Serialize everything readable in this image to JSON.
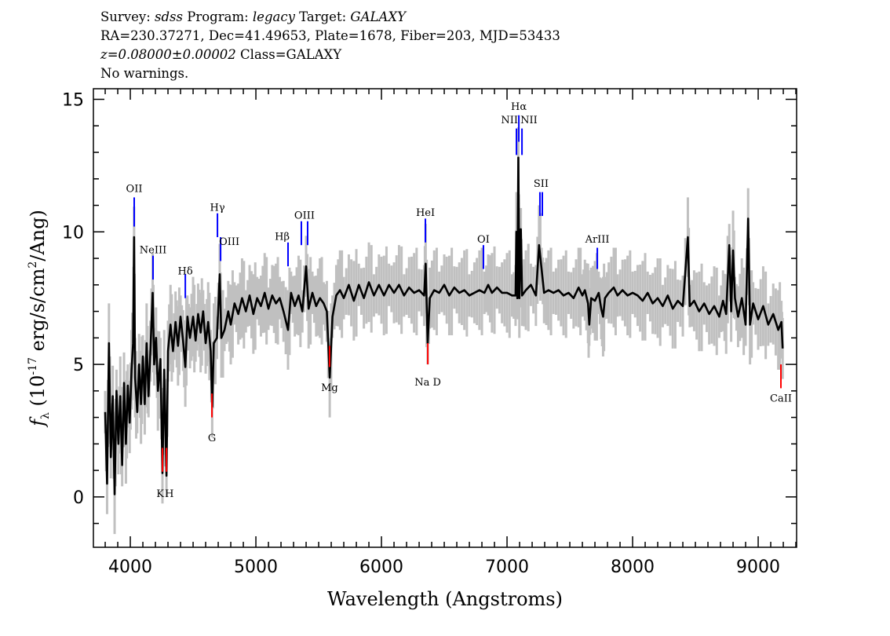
{
  "header": {
    "line1": {
      "survey_label": "Survey: ",
      "survey": "sdss",
      "program_label": " Program: ",
      "program": "legacy",
      "target_label": " Target: ",
      "target": "GALAXY"
    },
    "line2": "RA=230.37271, Dec=41.49653, Plate=1678, Fiber=203, MJD=53433",
    "line3": {
      "z": "z=0.08000±0.00002",
      "class": " Class=GALAXY"
    },
    "line4": "No warnings."
  },
  "chart_data": {
    "type": "line",
    "xlabel": "Wavelength (Angstroms)",
    "ylabel": {
      "f": "f",
      "sub": "λ",
      "a": " (10",
      "exp": "-17",
      "b": " erg/s/cm",
      "sq": "2",
      "c": "/Ang)"
    },
    "xlim": [
      3706,
      9306
    ],
    "ylim": [
      -1.9,
      15.4
    ],
    "xticks": [
      "4000",
      "5000",
      "6000",
      "7000",
      "8000",
      "9000"
    ],
    "yticks": [
      "0",
      "5",
      "10",
      "15"
    ],
    "colors": {
      "flux": "#000000",
      "raw_flux": "#c0c0c0",
      "emission": "#0000ff",
      "absorption": "#ff0000"
    },
    "flux": [
      [
        3800,
        3.2
      ],
      [
        3815,
        0.5
      ],
      [
        3830,
        5.8
      ],
      [
        3845,
        1.5
      ],
      [
        3860,
        3.8
      ],
      [
        3875,
        0.1
      ],
      [
        3890,
        4.0
      ],
      [
        3905,
        2.0
      ],
      [
        3920,
        3.8
      ],
      [
        3935,
        1.2
      ],
      [
        3950,
        4.3
      ],
      [
        3965,
        2.0
      ],
      [
        3980,
        4.2
      ],
      [
        3995,
        2.8
      ],
      [
        4010,
        4.8
      ],
      [
        4022,
        5.8
      ],
      [
        4030,
        9.8
      ],
      [
        4038,
        4.5
      ],
      [
        4055,
        3.2
      ],
      [
        4070,
        5.0
      ],
      [
        4085,
        3.5
      ],
      [
        4100,
        5.3
      ],
      [
        4115,
        3.5
      ],
      [
        4130,
        5.8
      ],
      [
        4145,
        3.8
      ],
      [
        4160,
        5.5
      ],
      [
        4178,
        7.7
      ],
      [
        4190,
        5.0
      ],
      [
        4205,
        6.0
      ],
      [
        4220,
        4.0
      ],
      [
        4240,
        5.2
      ],
      [
        4256,
        0.9
      ],
      [
        4270,
        4.8
      ],
      [
        4288,
        0.8
      ],
      [
        4300,
        5.5
      ],
      [
        4320,
        6.5
      ],
      [
        4340,
        5.5
      ],
      [
        4360,
        6.6
      ],
      [
        4380,
        5.7
      ],
      [
        4400,
        6.8
      ],
      [
        4420,
        5.9
      ],
      [
        4438,
        4.9
      ],
      [
        4455,
        6.8
      ],
      [
        4475,
        6.0
      ],
      [
        4500,
        6.8
      ],
      [
        4520,
        5.9
      ],
      [
        4540,
        6.9
      ],
      [
        4560,
        6.2
      ],
      [
        4580,
        7.0
      ],
      [
        4600,
        5.8
      ],
      [
        4620,
        6.6
      ],
      [
        4640,
        5.5
      ],
      [
        4652,
        3.4
      ],
      [
        4665,
        5.8
      ],
      [
        4690,
        6.0
      ],
      [
        4712,
        8.4
      ],
      [
        4725,
        6.0
      ],
      [
        4750,
        6.3
      ],
      [
        4780,
        7.0
      ],
      [
        4800,
        6.5
      ],
      [
        4830,
        7.3
      ],
      [
        4860,
        6.9
      ],
      [
        4890,
        7.5
      ],
      [
        4920,
        7.0
      ],
      [
        4950,
        7.6
      ],
      [
        4980,
        6.9
      ],
      [
        5010,
        7.5
      ],
      [
        5040,
        7.2
      ],
      [
        5070,
        7.7
      ],
      [
        5100,
        7.1
      ],
      [
        5130,
        7.6
      ],
      [
        5160,
        7.3
      ],
      [
        5190,
        7.5
      ],
      [
        5220,
        7.0
      ],
      [
        5256,
        6.3
      ],
      [
        5280,
        7.7
      ],
      [
        5310,
        7.2
      ],
      [
        5340,
        7.6
      ],
      [
        5370,
        7.0
      ],
      [
        5400,
        8.7
      ],
      [
        5420,
        7.1
      ],
      [
        5450,
        7.7
      ],
      [
        5480,
        7.2
      ],
      [
        5510,
        7.5
      ],
      [
        5540,
        7.3
      ],
      [
        5565,
        7.0
      ],
      [
        5588,
        4.5
      ],
      [
        5610,
        6.8
      ],
      [
        5640,
        7.6
      ],
      [
        5670,
        7.8
      ],
      [
        5700,
        7.5
      ],
      [
        5740,
        8.0
      ],
      [
        5780,
        7.4
      ],
      [
        5820,
        8.0
      ],
      [
        5860,
        7.5
      ],
      [
        5900,
        8.1
      ],
      [
        5940,
        7.6
      ],
      [
        5980,
        8.0
      ],
      [
        6020,
        7.6
      ],
      [
        6060,
        8.0
      ],
      [
        6100,
        7.7
      ],
      [
        6140,
        8.0
      ],
      [
        6180,
        7.6
      ],
      [
        6220,
        7.9
      ],
      [
        6260,
        7.7
      ],
      [
        6300,
        7.8
      ],
      [
        6340,
        7.6
      ],
      [
        6352,
        8.8
      ],
      [
        6368,
        5.8
      ],
      [
        6385,
        7.5
      ],
      [
        6420,
        7.8
      ],
      [
        6460,
        7.7
      ],
      [
        6500,
        8.0
      ],
      [
        6540,
        7.6
      ],
      [
        6580,
        7.9
      ],
      [
        6620,
        7.7
      ],
      [
        6660,
        7.8
      ],
      [
        6700,
        7.6
      ],
      [
        6740,
        7.7
      ],
      [
        6780,
        7.8
      ],
      [
        6820,
        7.7
      ],
      [
        6850,
        8.0
      ],
      [
        6880,
        7.7
      ],
      [
        6920,
        7.9
      ],
      [
        6960,
        7.7
      ],
      [
        7000,
        7.7
      ],
      [
        7040,
        7.6
      ],
      [
        7068,
        7.6
      ],
      [
        7075,
        10.0
      ],
      [
        7082,
        7.5
      ],
      [
        7090,
        12.8
      ],
      [
        7098,
        7.5
      ],
      [
        7110,
        10.1
      ],
      [
        7120,
        7.6
      ],
      [
        7150,
        7.8
      ],
      [
        7190,
        8.0
      ],
      [
        7230,
        7.6
      ],
      [
        7255,
        9.5
      ],
      [
        7275,
        8.6
      ],
      [
        7295,
        7.7
      ],
      [
        7330,
        7.8
      ],
      [
        7370,
        7.7
      ],
      [
        7410,
        7.8
      ],
      [
        7450,
        7.6
      ],
      [
        7490,
        7.7
      ],
      [
        7530,
        7.5
      ],
      [
        7570,
        7.9
      ],
      [
        7600,
        7.6
      ],
      [
        7620,
        7.8
      ],
      [
        7645,
        7.3
      ],
      [
        7655,
        6.5
      ],
      [
        7670,
        7.5
      ],
      [
        7700,
        7.4
      ],
      [
        7730,
        7.7
      ],
      [
        7750,
        7.1
      ],
      [
        7765,
        6.8
      ],
      [
        7780,
        7.5
      ],
      [
        7810,
        7.7
      ],
      [
        7850,
        7.9
      ],
      [
        7880,
        7.6
      ],
      [
        7920,
        7.8
      ],
      [
        7960,
        7.6
      ],
      [
        8000,
        7.7
      ],
      [
        8040,
        7.6
      ],
      [
        8080,
        7.4
      ],
      [
        8120,
        7.7
      ],
      [
        8160,
        7.3
      ],
      [
        8200,
        7.5
      ],
      [
        8240,
        7.2
      ],
      [
        8280,
        7.6
      ],
      [
        8320,
        7.1
      ],
      [
        8360,
        7.4
      ],
      [
        8400,
        7.2
      ],
      [
        8440,
        9.8
      ],
      [
        8455,
        7.2
      ],
      [
        8490,
        7.4
      ],
      [
        8530,
        7.0
      ],
      [
        8570,
        7.3
      ],
      [
        8610,
        6.9
      ],
      [
        8650,
        7.2
      ],
      [
        8690,
        6.8
      ],
      [
        8720,
        7.4
      ],
      [
        8745,
        6.9
      ],
      [
        8770,
        9.5
      ],
      [
        8785,
        7.0
      ],
      [
        8800,
        9.3
      ],
      [
        8815,
        7.5
      ],
      [
        8840,
        6.8
      ],
      [
        8870,
        7.5
      ],
      [
        8900,
        6.5
      ],
      [
        8920,
        10.5
      ],
      [
        8935,
        6.5
      ],
      [
        8960,
        7.3
      ],
      [
        9000,
        6.7
      ],
      [
        9040,
        7.2
      ],
      [
        9080,
        6.5
      ],
      [
        9120,
        6.9
      ],
      [
        9160,
        6.3
      ],
      [
        9185,
        6.6
      ],
      [
        9195,
        5.6
      ]
    ],
    "lines": [
      {
        "label": "OII",
        "type": "emission",
        "wavelengths": [
          4031
        ],
        "tick": [
          10.2,
          11.3
        ],
        "label_flux": 11.5
      },
      {
        "label": "NeIII",
        "type": "emission",
        "wavelengths": [
          4181
        ],
        "tick": [
          8.2,
          9.1
        ],
        "label_flux": 9.2
      },
      {
        "label": "Hδ",
        "type": "emission",
        "wavelengths": [
          4438
        ],
        "tick": [
          7.5,
          8.4
        ],
        "label_flux": 8.4
      },
      {
        "label": "Hγ",
        "type": "emission",
        "wavelengths": [
          4694
        ],
        "tick": [
          9.8,
          10.7
        ],
        "label_flux": 10.8
      },
      {
        "label": "OIII",
        "type": "emission",
        "wavelengths": [
          4719
        ],
        "tick": [
          8.9,
          9.8
        ],
        "label_flux": 9.5,
        "anchor": "start"
      },
      {
        "label": "Hβ",
        "type": "emission",
        "wavelengths": [
          5256
        ],
        "tick": [
          8.7,
          9.6
        ],
        "label_flux": 9.7,
        "anchor": "end"
      },
      {
        "label": "OIII",
        "type": "emission",
        "wavelengths": [
          5362,
          5412
        ],
        "tick": [
          9.5,
          10.4
        ],
        "label_flux": 10.5
      },
      {
        "label": "HeI",
        "type": "emission",
        "wavelengths": [
          6350
        ],
        "tick": [
          9.6,
          10.5
        ],
        "label_flux": 10.6
      },
      {
        "label": "OI",
        "type": "emission",
        "wavelengths": [
          6812
        ],
        "tick": [
          8.6,
          9.5
        ],
        "label_flux": 9.6
      },
      {
        "label": "Hα",
        "type": "emission",
        "wavelengths": [
          7094
        ],
        "tick": [
          13.4,
          14.4
        ],
        "label_flux": 14.6
      },
      {
        "label": "NII",
        "type": "emission",
        "wavelengths": [
          7075
        ],
        "tick": [
          12.9,
          13.9
        ],
        "label_flux": 14.1,
        "anchor": "end"
      },
      {
        "label": "NII",
        "type": "emission",
        "wavelengths": [
          7119
        ],
        "tick": [
          12.9,
          13.9
        ],
        "label_flux": 14.1,
        "anchor": "start"
      },
      {
        "label": "SII",
        "type": "emission",
        "wavelengths": [
          7262,
          7281
        ],
        "tick": [
          10.6,
          11.5
        ],
        "label_flux": 11.7
      },
      {
        "label": "ArIII",
        "type": "emission",
        "wavelengths": [
          7719
        ],
        "tick": [
          8.6,
          9.4
        ],
        "label_flux": 9.6
      },
      {
        "label": "K",
        "type": "absorption",
        "wavelengths": [
          4256
        ],
        "tick": [
          0.95,
          1.85
        ],
        "label_flux": 0.0,
        "anchor": "end"
      },
      {
        "label": "H",
        "type": "absorption",
        "wavelengths": [
          4288
        ],
        "tick": [
          0.95,
          1.85
        ],
        "label_flux": 0.0,
        "anchor": "start"
      },
      {
        "label": "G",
        "type": "absorption",
        "wavelengths": [
          4650
        ],
        "tick": [
          3.0,
          3.9
        ],
        "label_flux": 2.1
      },
      {
        "label": "Mg",
        "type": "absorption",
        "wavelengths": [
          5587
        ],
        "tick": [
          4.9,
          5.7
        ],
        "label_flux": 4.0
      },
      {
        "label": "Na D",
        "type": "absorption",
        "wavelengths": [
          6369
        ],
        "tick": [
          5.0,
          5.8
        ],
        "label_flux": 4.2
      },
      {
        "label": "CaII",
        "type": "absorption",
        "wavelengths": [
          9181
        ],
        "tick": [
          4.1,
          5.0
        ],
        "label_flux": 3.6
      }
    ]
  }
}
